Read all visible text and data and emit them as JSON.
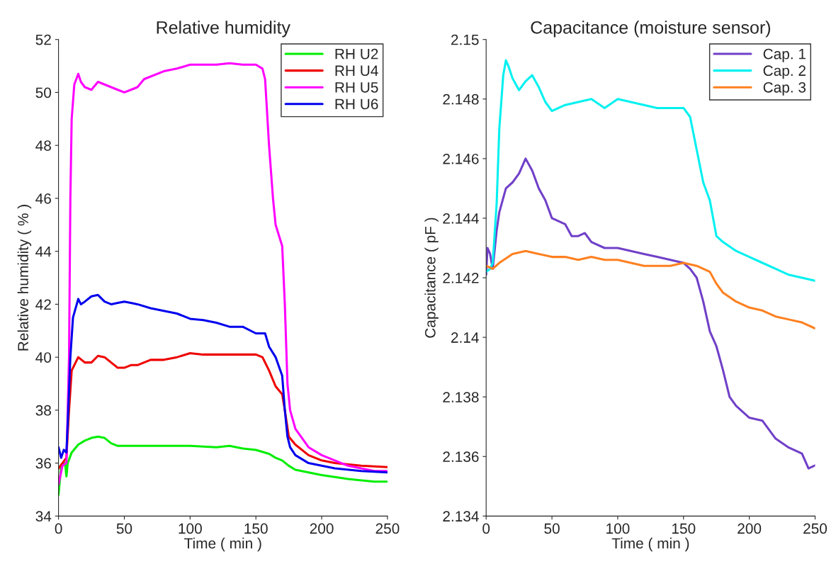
{
  "chart_data": [
    {
      "type": "line",
      "title": "Relative humidity",
      "xlabel": "Time ( min )",
      "ylabel": "Relative humidity ( % )",
      "xlim": [
        0,
        250
      ],
      "xticks": [
        0,
        50,
        100,
        150,
        200,
        250
      ],
      "ylim": [
        34,
        52
      ],
      "yticks": [
        34,
        36,
        38,
        40,
        42,
        44,
        46,
        48,
        50,
        52
      ],
      "grid": false,
      "legend": "top right",
      "line_style": "solid",
      "series": [
        {
          "name": "RH U2",
          "color": "#00ee00",
          "x": [
            0,
            2,
            5,
            6,
            7,
            10,
            15,
            20,
            25,
            30,
            35,
            40,
            45,
            50,
            60,
            80,
            100,
            120,
            130,
            140,
            150,
            160,
            165,
            170,
            175,
            180,
            190,
            200,
            220,
            240,
            250
          ],
          "values": [
            34.8,
            35.9,
            36.0,
            35.5,
            36.0,
            36.4,
            36.7,
            36.85,
            36.95,
            37.0,
            36.95,
            36.75,
            36.65,
            36.65,
            36.65,
            36.65,
            36.65,
            36.6,
            36.65,
            36.55,
            36.5,
            36.35,
            36.2,
            36.1,
            35.9,
            35.75,
            35.65,
            35.55,
            35.4,
            35.3,
            35.3
          ]
        },
        {
          "name": "RH U4",
          "color": "#ee0000",
          "x": [
            0,
            3,
            6,
            8,
            10,
            15,
            20,
            25,
            30,
            35,
            40,
            45,
            50,
            55,
            60,
            70,
            80,
            90,
            100,
            110,
            120,
            130,
            140,
            150,
            155,
            160,
            165,
            170,
            172,
            175,
            180,
            190,
            200,
            210,
            230,
            250
          ],
          "values": [
            35.8,
            36.0,
            36.2,
            38,
            39.5,
            40.0,
            39.8,
            39.8,
            40.05,
            40.0,
            39.8,
            39.6,
            39.6,
            39.7,
            39.7,
            39.9,
            39.9,
            40.0,
            40.15,
            40.1,
            40.1,
            40.1,
            40.1,
            40.1,
            40.0,
            39.5,
            38.9,
            38.6,
            38.0,
            37.0,
            36.7,
            36.3,
            36.1,
            36.0,
            35.9,
            35.85
          ]
        },
        {
          "name": "RH U5",
          "color": "#ff00ff",
          "x": [
            0,
            3,
            6,
            8,
            9,
            10,
            12,
            15,
            17,
            20,
            25,
            30,
            35,
            40,
            45,
            50,
            55,
            60,
            65,
            70,
            80,
            90,
            100,
            110,
            120,
            130,
            140,
            150,
            155,
            157,
            160,
            163,
            165,
            170,
            172,
            174,
            176,
            180,
            190,
            200,
            210,
            220,
            230,
            240,
            250
          ],
          "values": [
            35.2,
            35.9,
            36.0,
            40,
            46,
            49,
            50.3,
            50.7,
            50.4,
            50.2,
            50.1,
            50.4,
            50.3,
            50.2,
            50.1,
            50.0,
            50.1,
            50.2,
            50.5,
            50.6,
            50.8,
            50.9,
            51.05,
            51.05,
            51.05,
            51.1,
            51.05,
            51.05,
            50.9,
            50.5,
            48,
            46,
            45,
            44.2,
            42,
            39,
            38,
            37.3,
            36.6,
            36.3,
            36.1,
            35.9,
            35.8,
            35.7,
            35.7
          ]
        },
        {
          "name": "RH U6",
          "color": "#0000ee",
          "x": [
            0,
            2,
            4,
            6,
            7,
            9,
            11,
            15,
            17,
            20,
            25,
            30,
            35,
            40,
            45,
            50,
            55,
            60,
            70,
            80,
            90,
            100,
            110,
            120,
            130,
            140,
            150,
            157,
            160,
            165,
            170,
            172,
            174,
            176,
            180,
            190,
            200,
            210,
            230,
            250
          ],
          "values": [
            36.6,
            36.2,
            36.5,
            36.4,
            37.5,
            40,
            41.5,
            42.2,
            42.0,
            42.1,
            42.3,
            42.35,
            42.1,
            42.0,
            42.05,
            42.1,
            42.05,
            42.0,
            41.85,
            41.75,
            41.65,
            41.45,
            41.4,
            41.3,
            41.15,
            41.15,
            40.9,
            40.9,
            40.4,
            40.0,
            39.3,
            38.0,
            37.0,
            36.6,
            36.3,
            36.0,
            35.9,
            35.8,
            35.7,
            35.65
          ]
        }
      ]
    },
    {
      "type": "line",
      "title": "Capacitance (moisture sensor)",
      "xlabel": "Time ( min )",
      "ylabel": "Capacitance ( pF )",
      "xlim": [
        0,
        250
      ],
      "xticks": [
        0,
        50,
        100,
        150,
        200,
        250
      ],
      "ylim": [
        2.134,
        2.15
      ],
      "yticks": [
        2.134,
        2.136,
        2.138,
        2.14,
        2.142,
        2.144,
        2.146,
        2.148,
        2.15
      ],
      "grid": false,
      "legend": "top right",
      "line_style": "solid",
      "series": [
        {
          "name": "Cap. 1",
          "color": "#7040c8",
          "x": [
            0,
            1,
            3,
            5,
            8,
            10,
            15,
            20,
            25,
            30,
            35,
            40,
            45,
            50,
            55,
            60,
            65,
            70,
            75,
            80,
            90,
            100,
            110,
            120,
            130,
            140,
            150,
            155,
            160,
            165,
            170,
            175,
            180,
            185,
            190,
            200,
            210,
            220,
            230,
            240,
            245,
            250
          ],
          "values": [
            2.1421,
            2.143,
            2.1428,
            2.1423,
            2.1436,
            2.1442,
            2.145,
            2.1452,
            2.1455,
            2.146,
            2.1456,
            2.145,
            2.1446,
            2.144,
            2.1439,
            2.1438,
            2.1434,
            2.1434,
            2.1435,
            2.1432,
            2.143,
            2.143,
            2.1429,
            2.1428,
            2.1427,
            2.1426,
            2.1425,
            2.1423,
            2.142,
            2.1412,
            2.1402,
            2.1397,
            2.1389,
            2.138,
            2.1377,
            2.1373,
            2.1372,
            2.1366,
            2.1363,
            2.1361,
            2.1356,
            2.1357
          ]
        },
        {
          "name": "Cap. 2",
          "color": "#00f0f0",
          "x": [
            0,
            3,
            5,
            8,
            10,
            13,
            15,
            17,
            20,
            25,
            30,
            35,
            40,
            45,
            50,
            55,
            60,
            70,
            80,
            90,
            100,
            110,
            120,
            130,
            140,
            150,
            155,
            160,
            165,
            170,
            175,
            180,
            190,
            200,
            210,
            220,
            230,
            240,
            250
          ],
          "values": [
            2.1422,
            2.1423,
            2.1425,
            2.1445,
            2.147,
            2.1488,
            2.1493,
            2.1491,
            2.1487,
            2.1483,
            2.1486,
            2.1488,
            2.1484,
            2.1479,
            2.1476,
            2.1477,
            2.1478,
            2.1479,
            2.148,
            2.1477,
            2.148,
            2.1479,
            2.1478,
            2.1477,
            2.1477,
            2.1477,
            2.1474,
            2.1463,
            2.1452,
            2.1446,
            2.1434,
            2.1432,
            2.1429,
            2.1427,
            2.1425,
            2.1423,
            2.1421,
            2.142,
            2.1419
          ]
        },
        {
          "name": "Cap. 3",
          "color": "#ff8020",
          "x": [
            0,
            5,
            10,
            20,
            30,
            40,
            50,
            60,
            70,
            80,
            90,
            100,
            110,
            120,
            130,
            140,
            150,
            160,
            165,
            170,
            175,
            180,
            190,
            200,
            210,
            220,
            230,
            240,
            250
          ],
          "values": [
            2.1424,
            2.1423,
            2.1425,
            2.1428,
            2.1429,
            2.1428,
            2.1427,
            2.1427,
            2.1426,
            2.1427,
            2.1426,
            2.1426,
            2.1425,
            2.1424,
            2.1424,
            2.1424,
            2.1425,
            2.1424,
            2.1423,
            2.1422,
            2.1418,
            2.1415,
            2.1412,
            2.141,
            2.1409,
            2.1407,
            2.1406,
            2.1405,
            2.1403
          ]
        }
      ]
    }
  ]
}
